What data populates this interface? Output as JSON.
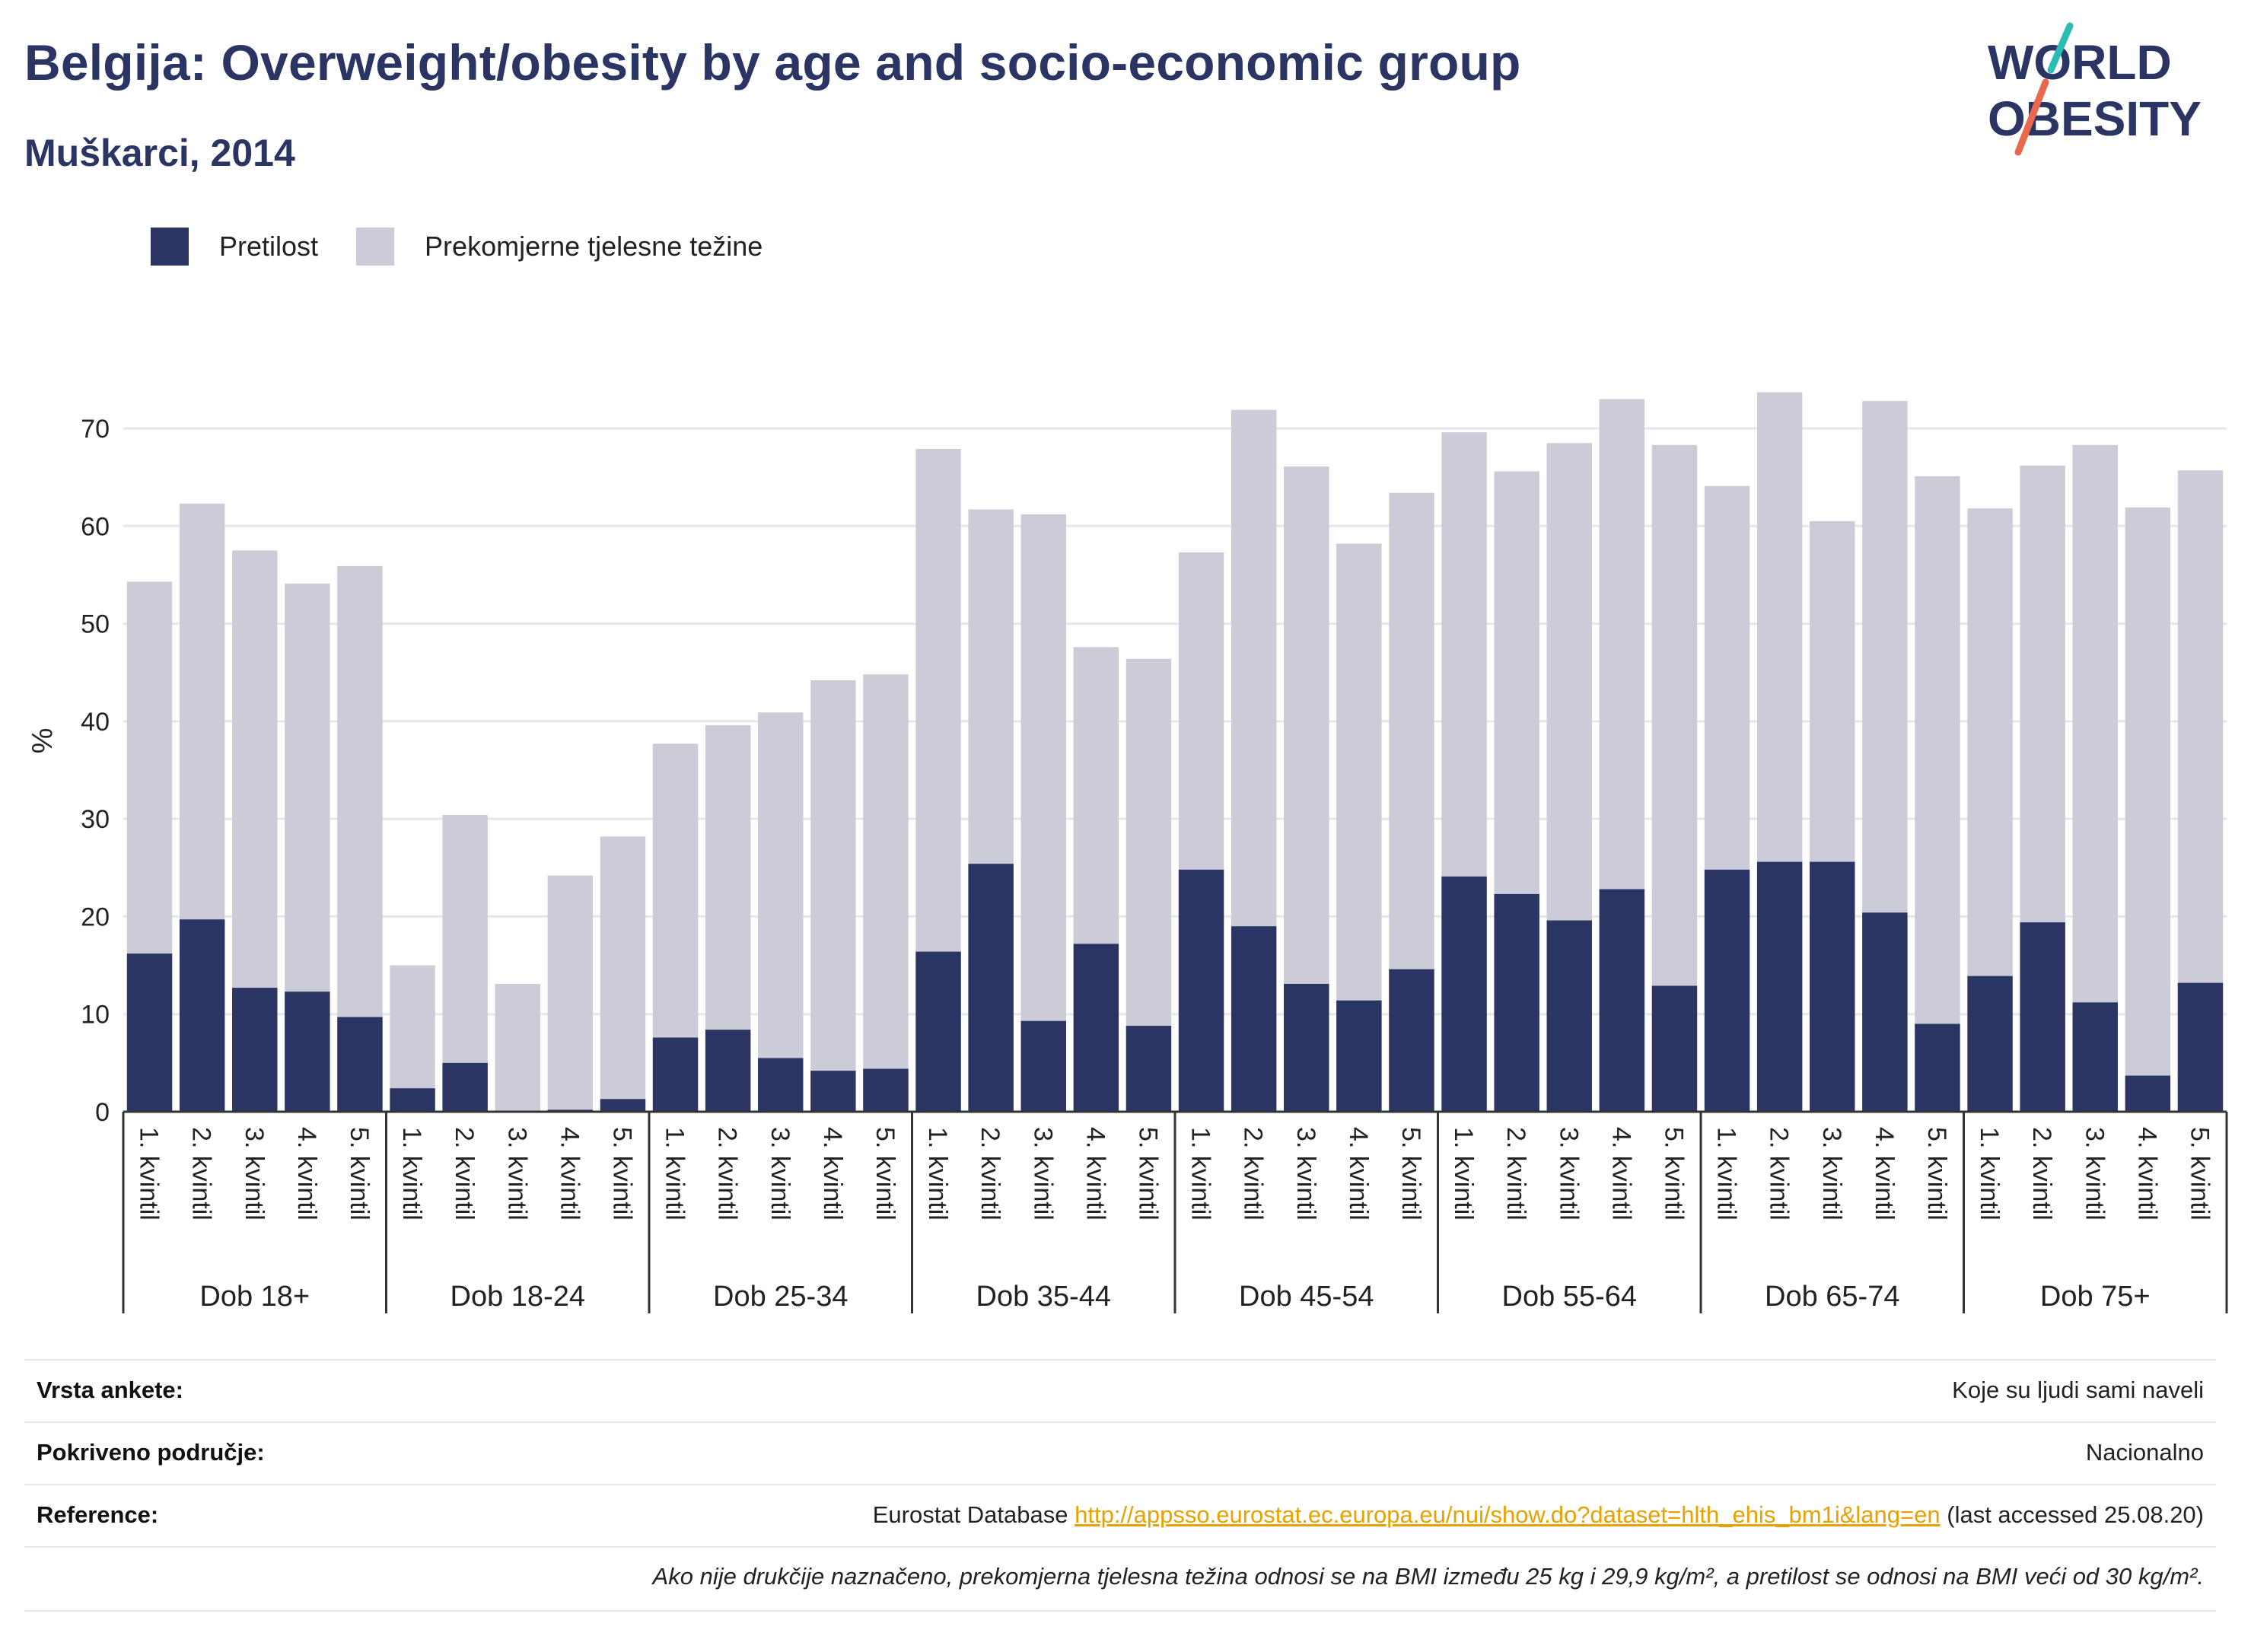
{
  "header": {
    "title": "Belgija: Overweight/obesity by age and socio-economic group",
    "subtitle": "Muškarci, 2014"
  },
  "logo": {
    "line1": "WORLD",
    "line2": "OBESITY"
  },
  "legend": {
    "items": [
      {
        "label": "Pretilost",
        "color": "#2a3563"
      },
      {
        "label": "Prekomjerne tjelesne težine",
        "color": "#cbccd8"
      }
    ]
  },
  "chart_data": {
    "type": "bar",
    "stacked": "overlay",
    "ylabel": "%",
    "ylim": [
      0,
      80
    ],
    "yticks": [
      0,
      10,
      20,
      30,
      40,
      50,
      60,
      70
    ],
    "grid": true,
    "legend_position": "top-left",
    "quintile_labels": [
      "1. kvintil",
      "2. kvintil",
      "3. kvintil",
      "4. kvintil",
      "5. kvintil"
    ],
    "groups": [
      {
        "label": "Dob 18+",
        "obesity": [
          16.2,
          19.7,
          12.7,
          12.3,
          9.7
        ],
        "overweight": [
          54.3,
          62.3,
          57.5,
          54.1,
          55.9
        ]
      },
      {
        "label": "Dob 18-24",
        "obesity": [
          2.4,
          5.0,
          0,
          0.2,
          1.3
        ],
        "overweight": [
          15.0,
          30.4,
          13.1,
          24.2,
          28.2
        ]
      },
      {
        "label": "Dob 25-34",
        "obesity": [
          7.6,
          8.4,
          5.5,
          4.2,
          4.4
        ],
        "overweight": [
          37.7,
          39.6,
          40.9,
          44.2,
          44.8
        ]
      },
      {
        "label": "Dob 35-44",
        "obesity": [
          16.4,
          25.4,
          9.3,
          17.2,
          8.8
        ],
        "overweight": [
          67.9,
          61.7,
          61.2,
          47.6,
          46.4
        ]
      },
      {
        "label": "Dob 45-54",
        "obesity": [
          24.8,
          19.0,
          13.1,
          11.4,
          14.6
        ],
        "overweight": [
          57.3,
          71.9,
          66.1,
          58.2,
          63.4
        ]
      },
      {
        "label": "Dob 55-64",
        "obesity": [
          24.1,
          22.3,
          19.6,
          22.8,
          12.9
        ],
        "overweight": [
          69.6,
          65.6,
          68.5,
          73.0,
          68.3
        ]
      },
      {
        "label": "Dob 65-74",
        "obesity": [
          24.8,
          25.6,
          25.6,
          20.4,
          9.0
        ],
        "overweight": [
          64.1,
          73.7,
          60.5,
          72.8,
          65.1
        ]
      },
      {
        "label": "Dob 75+",
        "obesity": [
          13.9,
          19.4,
          11.2,
          3.7,
          13.2
        ],
        "overweight": [
          61.8,
          66.2,
          68.3,
          61.9,
          65.7
        ]
      }
    ]
  },
  "info": {
    "survey_type_label": "Vrsta ankete:",
    "survey_type_value": "Koje su ljudi sami naveli",
    "coverage_label": "Pokriveno područje:",
    "coverage_value": "Nacionalno",
    "reference_label": "Reference:",
    "reference_prefix": "Eurostat Database",
    "reference_url": "http://appsso.eurostat.ec.europa.eu/nui/show.do?dataset=hlth_ehis_bm1i&lang=en",
    "reference_suffix": "(last accessed 25.08.20)",
    "note": "Ako nije drukčije naznačeno, prekomjerna tjelesna težina odnosi se na BMI između 25 kg i 29,9 kg/m², a pretilost se odnosi na BMI veći od 30 kg/m²."
  },
  "colors": {
    "obesity": "#2a3563",
    "overweight": "#cbccd8",
    "title": "#2a3563",
    "link": "#e8a200"
  }
}
